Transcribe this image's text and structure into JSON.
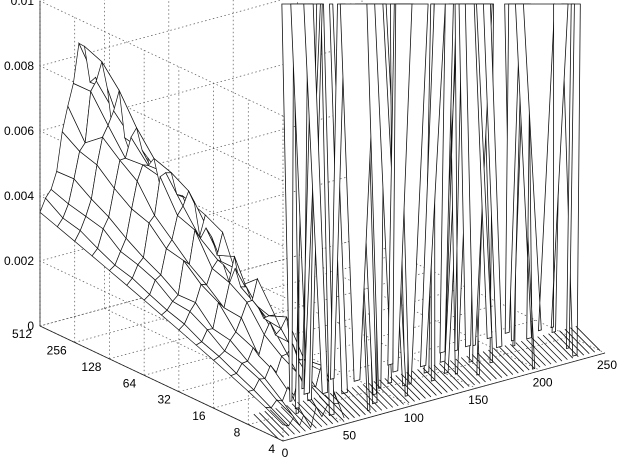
{
  "chart_data": {
    "type": "surface3d",
    "title": "",
    "xlabel": "",
    "ylabel": "",
    "zlabel": "",
    "x_ticks": [
      "0",
      "50",
      "100",
      "150",
      "200",
      "250"
    ],
    "y_ticks": [
      "4",
      "8",
      "16",
      "32",
      "64",
      "128",
      "256",
      "512"
    ],
    "z_ticks": [
      "0",
      "0.002",
      "0.004",
      "0.006",
      "0.008",
      "0.01"
    ],
    "x_range": [
      0,
      250
    ],
    "y_scale": "log2",
    "y_range": [
      4,
      512
    ],
    "zlim": [
      0,
      0.01
    ],
    "grid": true,
    "surface_profile": {
      "description_rows": "values along x for y=512 (back edge) rise from ~0.0035 to ~0.008 near x=15 then become noisy; for small y the surface shoots far above zlim (clipped spikes)",
      "y512": [
        0.0035,
        0.0038,
        0.0042,
        0.0048,
        0.0056,
        0.0065,
        0.0074,
        0.008,
        0.0078,
        0.007,
        0.0068,
        0.0062
      ],
      "y4": [
        0.0005,
        0.0004,
        0.0006,
        0.0004,
        0.0007,
        0.0003,
        0.0008,
        0.0004,
        0.0006,
        0.0005,
        0.0007,
        0.0004
      ]
    }
  }
}
